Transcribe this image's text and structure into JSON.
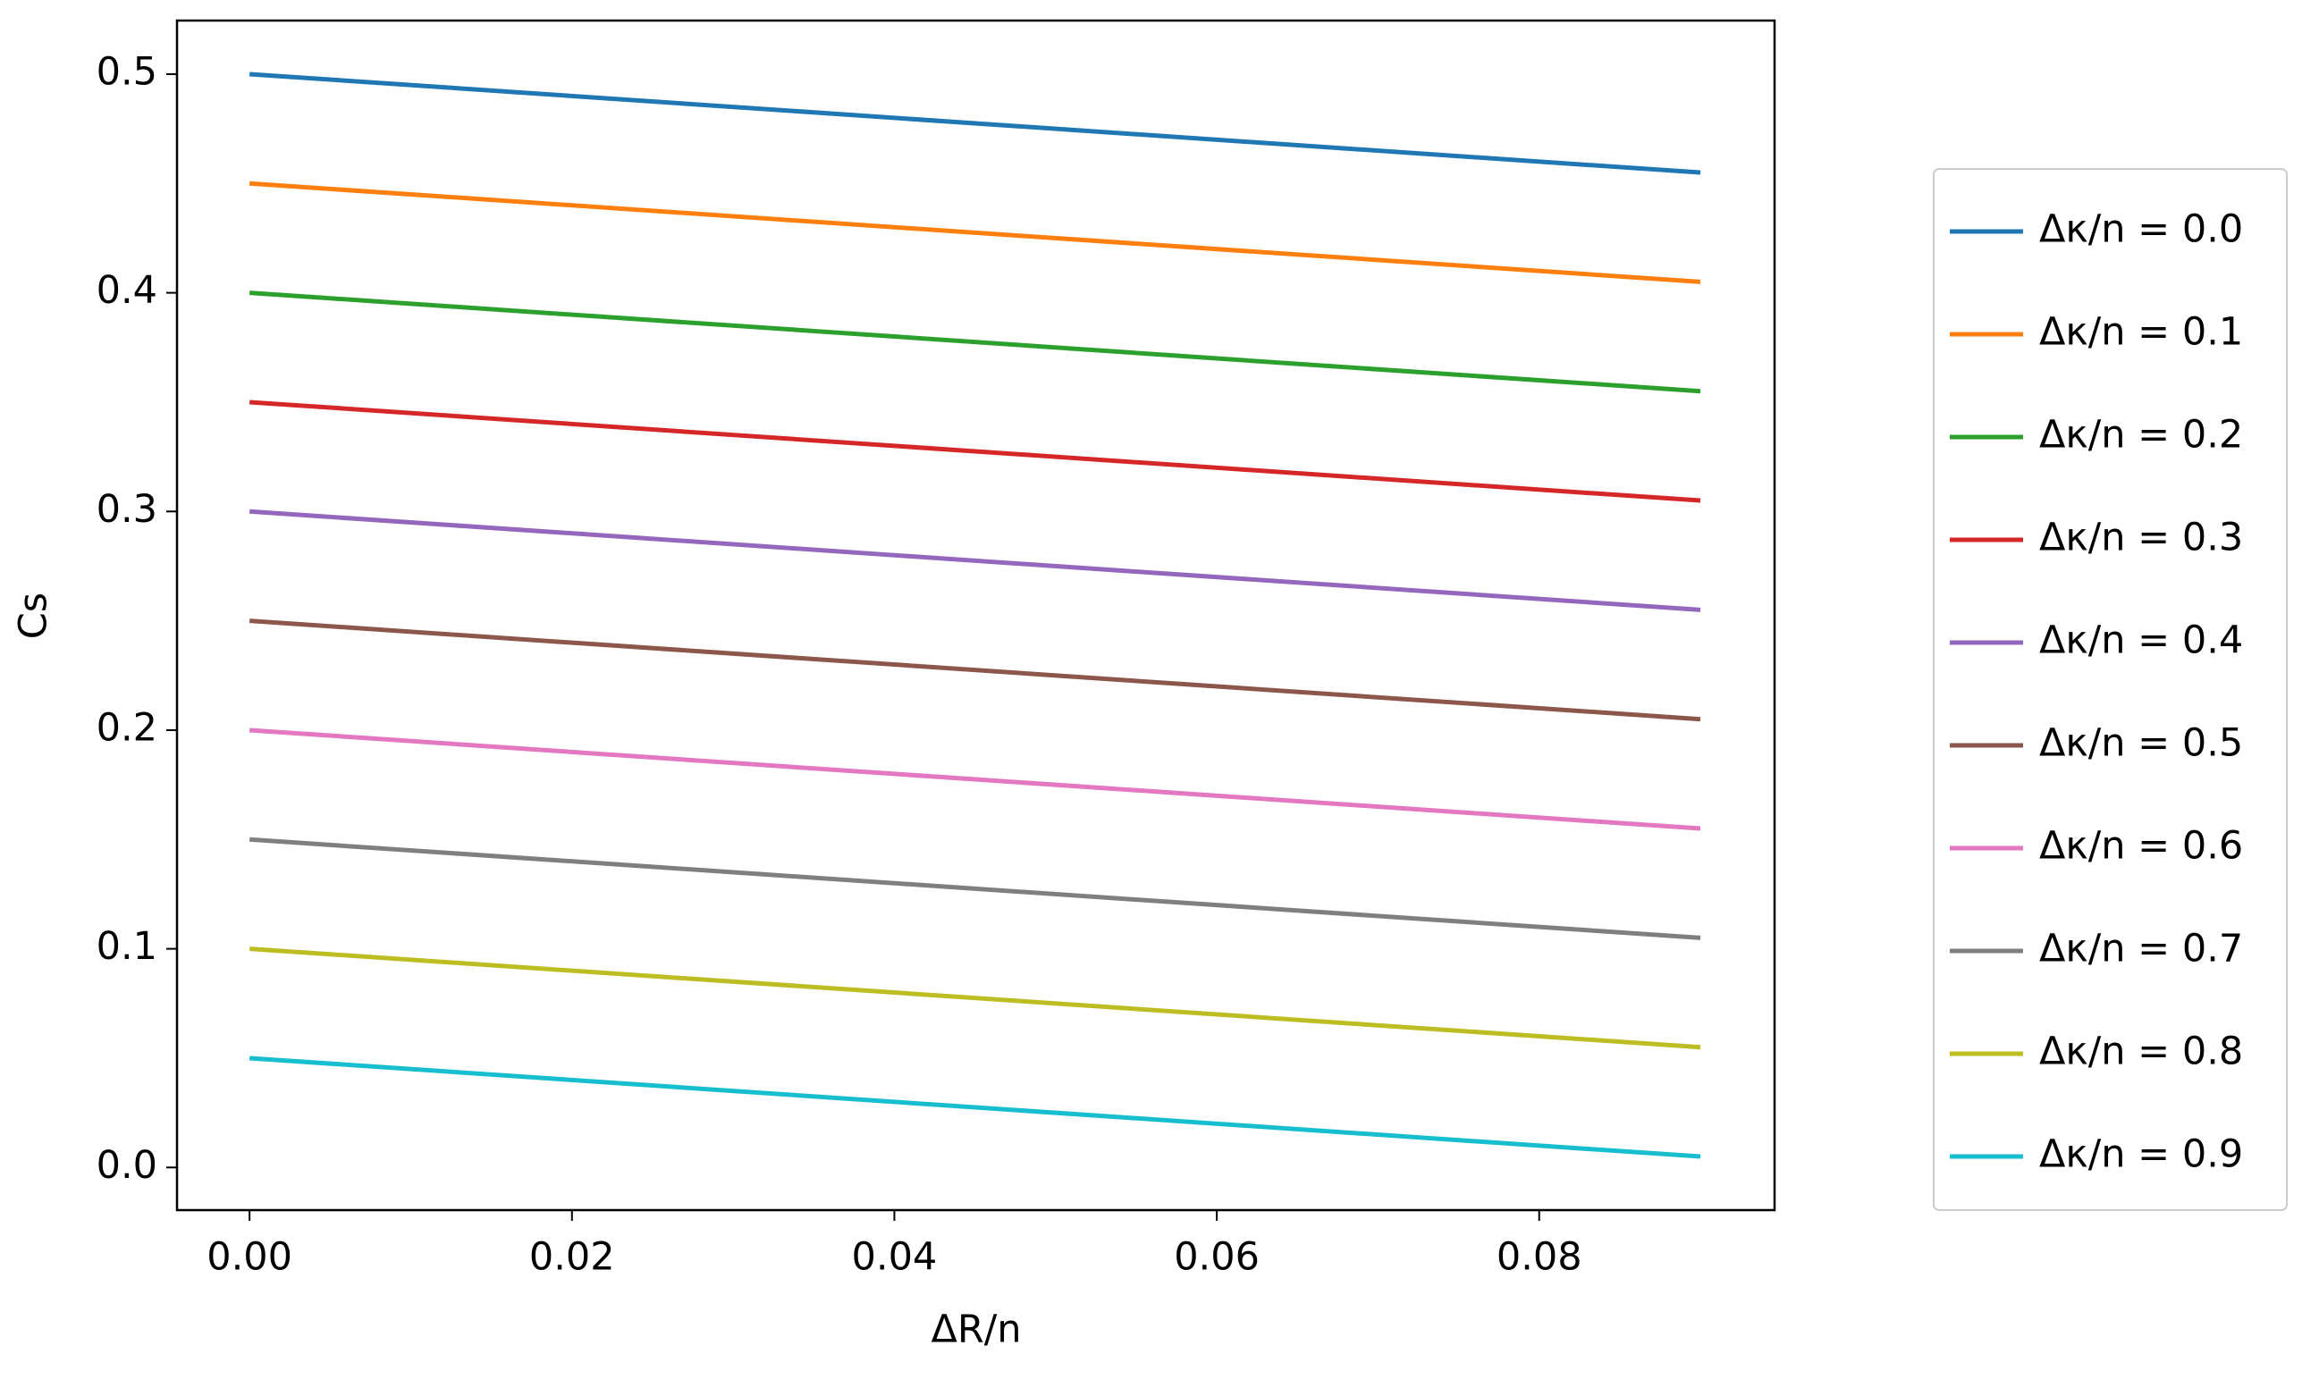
{
  "chart_data": {
    "type": "line",
    "x_label": "ΔR/n",
    "y_label": "Cs",
    "x": [
      0,
      0.09
    ],
    "series": [
      {
        "name": "Δκ/n = 0.0",
        "color": "#1f77b4",
        "values": [
          0.5,
          0.455
        ]
      },
      {
        "name": "Δκ/n = 0.1",
        "color": "#ff7f0e",
        "values": [
          0.45,
          0.405
        ]
      },
      {
        "name": "Δκ/n = 0.2",
        "color": "#2ca02c",
        "values": [
          0.4,
          0.355
        ]
      },
      {
        "name": "Δκ/n = 0.3",
        "color": "#d62728",
        "values": [
          0.35,
          0.305
        ]
      },
      {
        "name": "Δκ/n = 0.4",
        "color": "#9467bd",
        "values": [
          0.3,
          0.255
        ]
      },
      {
        "name": "Δκ/n = 0.5",
        "color": "#8c564b",
        "values": [
          0.25,
          0.205
        ]
      },
      {
        "name": "Δκ/n = 0.6",
        "color": "#e377c2",
        "values": [
          0.2,
          0.155
        ]
      },
      {
        "name": "Δκ/n = 0.7",
        "color": "#7f7f7f",
        "values": [
          0.15,
          0.105
        ]
      },
      {
        "name": "Δκ/n = 0.8",
        "color": "#bcbd22",
        "values": [
          0.1,
          0.055
        ]
      },
      {
        "name": "Δκ/n = 0.9",
        "color": "#17becf",
        "values": [
          0.05,
          0.005
        ]
      }
    ],
    "xlim": [
      -0.0045,
      0.0946
    ],
    "ylim": [
      -0.0195,
      0.5245
    ],
    "xticks": [
      {
        "value": 0,
        "label": "0.00"
      },
      0.02,
      0.04,
      0.06,
      0.08
    ],
    "yticks": [
      {
        "value": 0,
        "label": "0.0"
      },
      0.1,
      0.2,
      0.3,
      0.4,
      0.5
    ],
    "legend": "outside-right"
  }
}
